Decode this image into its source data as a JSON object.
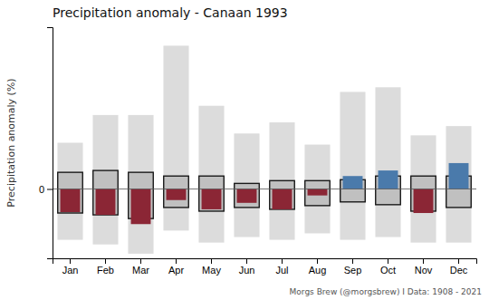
{
  "chart_data": {
    "type": "bar",
    "title": "Precipitation anomaly - Canaan 1993",
    "ylabel": "Precipitation anomaly (%)",
    "caption": "Morgs Brew (@morgsbrew) I Data: 1908 - 2021",
    "categories": [
      "Jan",
      "Feb",
      "Mar",
      "Apr",
      "May",
      "Jun",
      "Jul",
      "Aug",
      "Sep",
      "Oct",
      "Nov",
      "Dec"
    ],
    "values": [
      -25,
      -28,
      -38,
      -12,
      -22,
      -15,
      -22,
      -7,
      14,
      20,
      -26,
      28
    ],
    "colors": [
      "#8b2635",
      "#8b2635",
      "#8b2635",
      "#8b2635",
      "#8b2635",
      "#8b2635",
      "#8b2635",
      "#8b2635",
      "#4a7aab",
      "#4a7aab",
      "#8b2635",
      "#4a7aab"
    ],
    "range_min": [
      -55,
      -60,
      -70,
      -45,
      -58,
      -52,
      -55,
      -48,
      -55,
      -52,
      -58,
      -58
    ],
    "range_max": [
      50,
      80,
      80,
      155,
      90,
      60,
      72,
      48,
      105,
      110,
      58,
      68
    ],
    "q25": [
      -26,
      -28,
      -32,
      -20,
      -24,
      -20,
      -22,
      -18,
      -14,
      -17,
      -24,
      -20
    ],
    "q75": [
      18,
      20,
      18,
      14,
      14,
      6,
      9,
      9,
      10,
      14,
      14,
      14
    ],
    "ylim": [
      -75,
      175
    ],
    "yticks": [
      0
    ],
    "grid": false
  }
}
